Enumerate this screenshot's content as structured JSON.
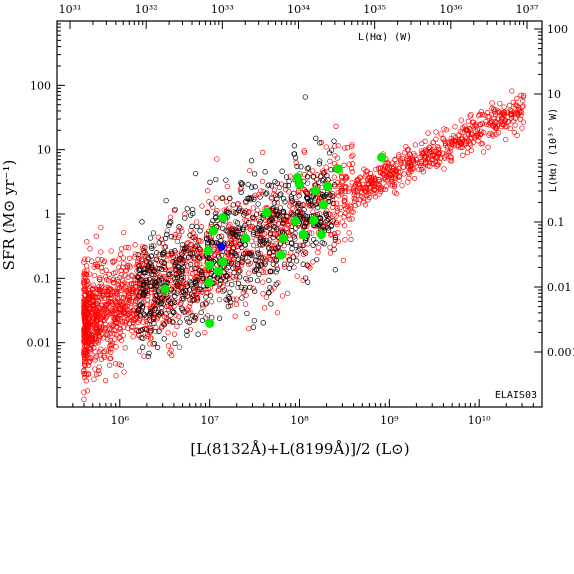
{
  "chart_data": {
    "type": "scatter",
    "xlabel": "[L(8132Å)+L(8199Å)]/2 (L⊙)",
    "ylabel": "SFR (M⊙ yr⁻¹)",
    "top_axis_label": "L(Hα) (W)",
    "right_axis_label": "L(Hα) (10³⁵ W)",
    "annotation": "ELAIS03",
    "x_scale": "log",
    "y_scale": "log",
    "xlim": [
      200000,
      50000000000
    ],
    "ylim": [
      0.001,
      1000
    ],
    "grid": false,
    "x_ticks": [
      {
        "value": 1000000,
        "label": "10⁶"
      },
      {
        "value": 10000000,
        "label": "10⁷"
      },
      {
        "value": 100000000,
        "label": "10⁸"
      },
      {
        "value": 1000000000,
        "label": "10⁹"
      },
      {
        "value": 10000000000,
        "label": "10¹⁰"
      }
    ],
    "y_ticks": [
      {
        "value": 0.01,
        "label": "0.01"
      },
      {
        "value": 0.1,
        "label": "0.1"
      },
      {
        "value": 1,
        "label": "1"
      },
      {
        "value": 10,
        "label": "10"
      },
      {
        "value": 100,
        "label": "100"
      }
    ],
    "top_ticks": [
      {
        "value": 1e+31,
        "label": "10³¹"
      },
      {
        "value": 1e+32,
        "label": "10³²"
      },
      {
        "value": 1e+33,
        "label": "10³³"
      },
      {
        "value": 1e+34,
        "label": "10³⁴"
      },
      {
        "value": 1e+35,
        "label": "10³⁵"
      },
      {
        "value": 1e+36,
        "label": "10³⁶"
      },
      {
        "value": 1e+37,
        "label": "10³⁷"
      }
    ],
    "right_ticks": [
      {
        "value": 100,
        "label": "100"
      },
      {
        "value": 10,
        "label": "10"
      },
      {
        "value": 0.1,
        "label": "0.1"
      },
      {
        "value": 0.01,
        "label": "0.01"
      },
      {
        "value": 0.001,
        "label": "0.001"
      }
    ],
    "series": [
      {
        "color": "#ff0000",
        "marker": "open-circle",
        "cloud": {
          "count": 2200,
          "seed": 17
        }
      },
      {
        "color": "#000000",
        "marker": "open-circle",
        "cloud": {
          "count": 700,
          "seed": 91
        }
      },
      {
        "color": "#00ee00",
        "marker": "filled-circle",
        "points": [
          [
            3200000,
            0.068
          ],
          [
            9800000,
            0.086
          ],
          [
            10000000,
            0.16
          ],
          [
            12500000,
            0.13
          ],
          [
            14000000,
            0.18
          ],
          [
            9600000,
            0.27
          ],
          [
            11000000,
            0.55
          ],
          [
            14000000,
            0.88
          ],
          [
            25000000,
            0.42
          ],
          [
            43000000,
            1.05
          ],
          [
            62000000,
            0.23
          ],
          [
            66000000,
            0.42
          ],
          [
            90000000,
            0.78
          ],
          [
            110000000,
            0.48
          ],
          [
            145000000,
            0.8
          ],
          [
            175000000,
            0.48
          ],
          [
            185000000,
            1.4
          ],
          [
            95000000,
            3.7
          ],
          [
            150000000,
            2.3
          ],
          [
            205000000,
            2.7
          ],
          [
            270000000,
            5.0
          ],
          [
            100000000,
            2.9
          ],
          [
            820000000,
            7.6
          ],
          [
            10000000,
            0.02
          ]
        ]
      },
      {
        "color": "#0000ff",
        "marker": "filled-circle",
        "points": [
          [
            13500000,
            0.31
          ]
        ]
      }
    ]
  }
}
